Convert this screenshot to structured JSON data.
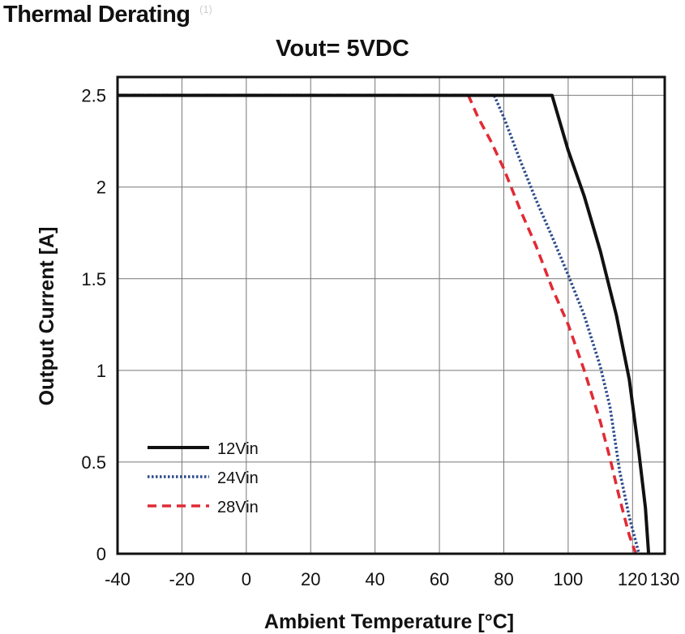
{
  "header": {
    "title": "Thermal Derating",
    "footnote": "(1)"
  },
  "chart_data": {
    "type": "line",
    "title": "Vout= 5VDC",
    "xlabel": "Ambient Temperature [°C]",
    "ylabel": "Output Current [A]",
    "xlim": [
      -40,
      130
    ],
    "ylim": [
      0,
      2.6
    ],
    "x_ticks": [
      -40,
      -20,
      0,
      20,
      40,
      60,
      80,
      100,
      120,
      130
    ],
    "x_tick_labels": [
      "-40",
      "-20",
      "0",
      "20",
      "40",
      "60",
      "80",
      "100",
      "120",
      "130"
    ],
    "y_ticks": [
      0,
      0.5,
      1,
      1.5,
      2,
      2.5
    ],
    "y_tick_labels": [
      "0",
      "0.5",
      "1",
      "1.5",
      "2",
      "2.5"
    ],
    "grid": true,
    "legend_position": "bottom-left",
    "series": [
      {
        "name": "12Vin",
        "color": "#111111",
        "style": "solid",
        "points": [
          [
            -40,
            2.5
          ],
          [
            95,
            2.5
          ],
          [
            100,
            2.2
          ],
          [
            105,
            1.95
          ],
          [
            110,
            1.65
          ],
          [
            115,
            1.3
          ],
          [
            119,
            0.95
          ],
          [
            122,
            0.55
          ],
          [
            124,
            0.25
          ],
          [
            125,
            0
          ]
        ]
      },
      {
        "name": "24Vin",
        "color": "#2b4a8c",
        "style": "dotted",
        "points": [
          [
            -40,
            2.5
          ],
          [
            77,
            2.5
          ],
          [
            80,
            2.38
          ],
          [
            85,
            2.15
          ],
          [
            90,
            1.93
          ],
          [
            95,
            1.73
          ],
          [
            100,
            1.52
          ],
          [
            105,
            1.3
          ],
          [
            110,
            1.02
          ],
          [
            113,
            0.8
          ],
          [
            116,
            0.45
          ],
          [
            119,
            0.2
          ],
          [
            122,
            0
          ]
        ]
      },
      {
        "name": "28Vin",
        "color": "#e02b35",
        "style": "dashed",
        "points": [
          [
            -40,
            2.5
          ],
          [
            69,
            2.5
          ],
          [
            72,
            2.38
          ],
          [
            76,
            2.25
          ],
          [
            80,
            2.1
          ],
          [
            85,
            1.88
          ],
          [
            90,
            1.68
          ],
          [
            95,
            1.45
          ],
          [
            100,
            1.25
          ],
          [
            105,
            1.0
          ],
          [
            110,
            0.72
          ],
          [
            113,
            0.52
          ],
          [
            116,
            0.3
          ],
          [
            119,
            0.1
          ],
          [
            121,
            0
          ]
        ]
      }
    ]
  }
}
